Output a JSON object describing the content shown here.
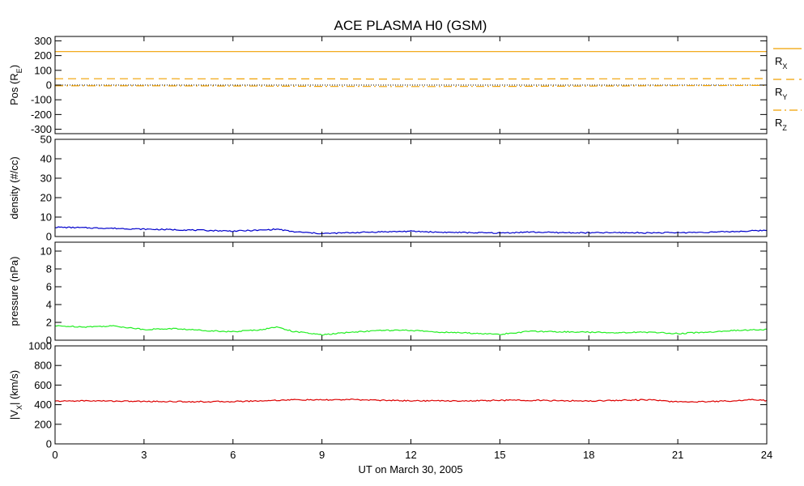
{
  "chart_data": {
    "title": "ACE PLASMA H0 (GSM)",
    "xlabel": "UT on March 30, 2005",
    "xlim": [
      0,
      24
    ],
    "xticks": [
      0,
      3,
      6,
      9,
      12,
      15,
      18,
      21,
      24
    ],
    "xtick_labels": [
      "0",
      "3",
      "6",
      "9",
      "12",
      "15",
      "18",
      "21",
      "24"
    ],
    "panels": [
      {
        "type": "line",
        "ylabel": "Pos (R",
        "ylabel_sub": "E",
        "ylabel_end": ")",
        "ylim": [
          -330,
          330
        ],
        "yticks": [
          -300,
          -200,
          -100,
          0,
          100,
          200,
          300
        ],
        "ytick_labels": [
          "-300",
          "-200",
          "-100",
          "0",
          "100",
          "200",
          "300"
        ],
        "series": [
          {
            "name": "R",
            "sub": "X",
            "color": "#f0a000",
            "dash": "solid",
            "x": [
              0,
              3,
              6,
              9,
              12,
              15,
              18,
              21,
              24
            ],
            "values": [
              227,
              227,
              227,
              227,
              227,
              227,
              227,
              227,
              227
            ]
          },
          {
            "name": "R",
            "sub": "Y",
            "color": "#f0a000",
            "dash": "dashed",
            "x": [
              0,
              3,
              6,
              9,
              12,
              15,
              18,
              21,
              24
            ],
            "values": [
              43,
              43,
              42,
              42,
              40,
              41,
              42,
              43,
              44
            ]
          },
          {
            "name": "R",
            "sub": "Z",
            "color": "#f0a000",
            "dash": "dashdot",
            "x": [
              0,
              3,
              6,
              9,
              12,
              15,
              18,
              21,
              24
            ],
            "values": [
              -5,
              -5,
              -6,
              -9,
              -10,
              -9,
              -7,
              -4,
              -2
            ]
          }
        ],
        "zero_line": true
      },
      {
        "type": "line",
        "ylabel": "density (#/cc)",
        "ylim": [
          0,
          50
        ],
        "yticks": [
          0,
          10,
          20,
          30,
          40,
          50
        ],
        "ytick_labels": [
          "0",
          "10",
          "20",
          "30",
          "40",
          "50"
        ],
        "series": [
          {
            "color": "#0000cc",
            "x": [
              0,
              1,
              2,
              3,
              4,
              5,
              6,
              7,
              7.5,
              8,
              9,
              10,
              11,
              12,
              13,
              14,
              15,
              16,
              17,
              18,
              19,
              20,
              21,
              22,
              23,
              24
            ],
            "values": [
              4.8,
              4.5,
              4.2,
              3.8,
              3.5,
              3.2,
              2.8,
              3.3,
              3.8,
              2.5,
              1.5,
              2.0,
              2.4,
              2.7,
              2.2,
              2.0,
              1.8,
              2.3,
              2.0,
              1.9,
              2.0,
              1.9,
              2.0,
              2.2,
              2.6,
              3.2
            ]
          }
        ]
      },
      {
        "type": "line",
        "ylabel": "pressure (nPa)",
        "ylim": [
          0,
          11
        ],
        "yticks": [
          0,
          2,
          4,
          6,
          8,
          10
        ],
        "ytick_labels": [
          "0",
          "2",
          "4",
          "6",
          "8",
          "10"
        ],
        "series": [
          {
            "color": "#22ee22",
            "x": [
              0,
              1,
              2,
              3,
              4,
              5,
              6,
              7,
              7.5,
              8,
              9,
              10,
              11,
              12,
              13,
              14,
              15,
              16,
              17,
              18,
              19,
              20,
              21,
              22,
              23,
              24
            ],
            "values": [
              1.6,
              1.5,
              1.6,
              1.2,
              1.3,
              1.1,
              0.95,
              1.2,
              1.5,
              1.0,
              0.6,
              0.9,
              1.1,
              1.1,
              0.9,
              0.8,
              0.65,
              1.0,
              0.95,
              0.9,
              0.85,
              0.9,
              0.75,
              0.9,
              1.1,
              1.2
            ]
          }
        ]
      },
      {
        "type": "line",
        "ylabel": "|V",
        "ylabel_sub": "X",
        "ylabel_end": "| (km/s)",
        "ylim": [
          0,
          1000
        ],
        "yticks": [
          0,
          200,
          400,
          600,
          800,
          1000
        ],
        "ytick_labels": [
          "0",
          "200",
          "400",
          "600",
          "800",
          "1000"
        ],
        "series": [
          {
            "color": "#dd0000",
            "x": [
              0,
              1,
              2,
              3,
              4,
              5,
              6,
              7,
              8,
              9,
              10,
              11,
              12,
              13,
              14,
              15,
              16,
              17,
              18,
              19,
              20,
              21,
              22,
              23,
              23.5,
              24
            ],
            "values": [
              435,
              440,
              437,
              433,
              432,
              430,
              432,
              440,
              450,
              448,
              452,
              445,
              440,
              440,
              438,
              445,
              445,
              440,
              438,
              445,
              450,
              428,
              432,
              440,
              455,
              440
            ]
          }
        ]
      }
    ]
  }
}
